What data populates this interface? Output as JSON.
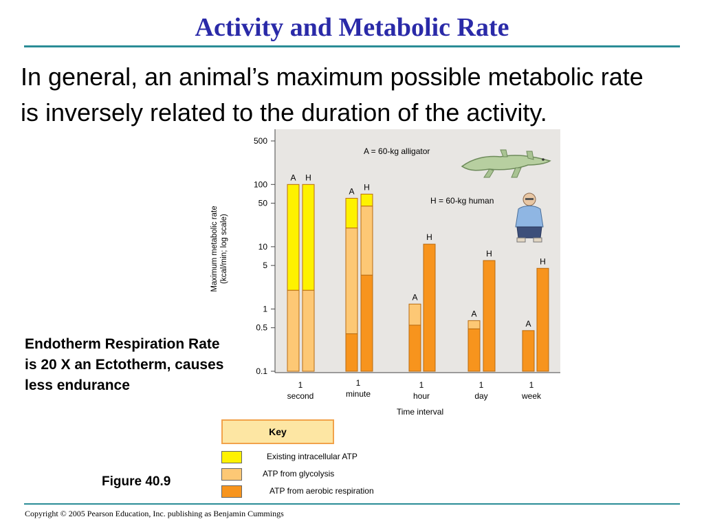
{
  "title": "Activity and Metabolic Rate",
  "body_text": "In general, an animal’s maximum possible metabolic rate is inversely related to the duration of the activity.",
  "side_note": "Endotherm Respiration Rate is 20 X an Ectotherm, causes less endurance",
  "figure_label": "Figure 40.9",
  "copyright": "Copyright © 2005 Pearson Education, Inc. publishing as Benjamin Cummings",
  "colors": {
    "title": "#2a2aa8",
    "rule": "#2a8c96",
    "atp_existing": "#fef200",
    "atp_glycolysis": "#fdc875",
    "atp_aerobic": "#f7941d",
    "plot_bg": "#e8e6e3"
  },
  "key": {
    "title": "Key",
    "items": [
      {
        "label": "Existing intracellular ATP",
        "color": "#fef200"
      },
      {
        "label": "ATP from glycolysis",
        "color": "#fdc875"
      },
      {
        "label": "ATP from aerobic respiration",
        "color": "#f7941d"
      }
    ]
  },
  "illustrations": {
    "alligator": "alligator-illustration",
    "human": "human-illustration"
  },
  "chart_data": {
    "type": "bar",
    "stacked": true,
    "log_scale": true,
    "ylabel": "Maximum metabolic rate (kcal/min; log scale)",
    "xlabel": "Time interval",
    "ylim": [
      0.1,
      500
    ],
    "y_ticks": [
      0.1,
      0.5,
      1,
      5,
      10,
      50,
      100,
      500
    ],
    "grid": false,
    "annotations": [
      "A = 60-kg alligator",
      "H = 60-kg human"
    ],
    "categories": [
      "1 second",
      "1 minute",
      "1 hour",
      "1 day",
      "1 week"
    ],
    "segments": [
      "Existing intracellular ATP",
      "ATP from glycolysis",
      "ATP from aerobic respiration"
    ],
    "bars": [
      {
        "category": "1 second",
        "animal": "A",
        "stack_tops": [
          100,
          2,
          0
        ]
      },
      {
        "category": "1 second",
        "animal": "H",
        "stack_tops": [
          100,
          2,
          0
        ]
      },
      {
        "category": "1 minute",
        "animal": "A",
        "stack_tops": [
          60,
          20,
          0.4
        ]
      },
      {
        "category": "1 minute",
        "animal": "H",
        "stack_tops": [
          70,
          45,
          3.5
        ]
      },
      {
        "category": "1 hour",
        "animal": "A",
        "stack_tops": [
          null,
          1.2,
          0.55
        ]
      },
      {
        "category": "1 hour",
        "animal": "H",
        "stack_tops": [
          null,
          null,
          11
        ]
      },
      {
        "category": "1 day",
        "animal": "A",
        "stack_tops": [
          null,
          0.65,
          0.48
        ]
      },
      {
        "category": "1 day",
        "animal": "H",
        "stack_tops": [
          null,
          null,
          6
        ]
      },
      {
        "category": "1 week",
        "animal": "A",
        "stack_tops": [
          null,
          null,
          0.45
        ]
      },
      {
        "category": "1 week",
        "animal": "H",
        "stack_tops": [
          null,
          null,
          4.5
        ]
      }
    ]
  }
}
